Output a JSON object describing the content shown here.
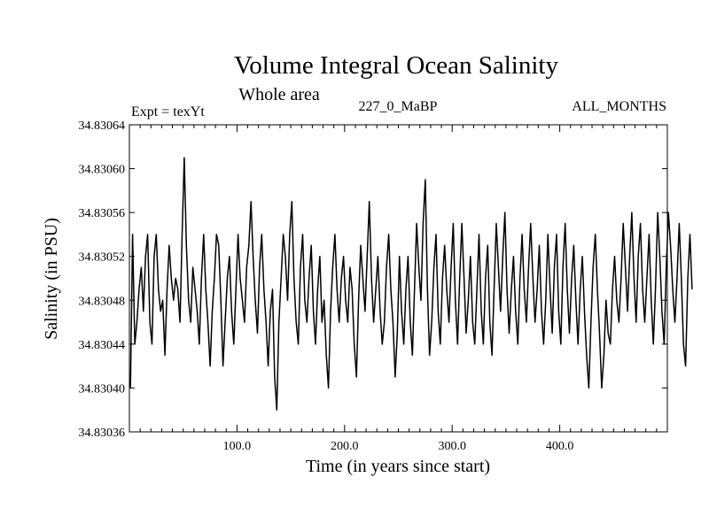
{
  "chart_data": {
    "type": "line",
    "title": "Volume Integral Ocean Salinity",
    "subtitle": "Whole area",
    "annotations": {
      "left": "Expt = texYt",
      "center": "227_0_MaBP",
      "right": "ALL_MONTHS"
    },
    "xlabel": "Time (in years since start)",
    "ylabel": "Salinity (in PSU)",
    "xlim": [
      0,
      500
    ],
    "ylim": [
      34.83036,
      34.83064
    ],
    "x_ticks": [
      100,
      200,
      300,
      400
    ],
    "x_tick_labels": [
      "100.0",
      "200.0",
      "300.0",
      "400.0"
    ],
    "y_ticks": [
      34.83036,
      34.8304,
      34.83044,
      34.83048,
      34.83052,
      34.83056,
      34.8306,
      34.83064
    ],
    "y_tick_labels": [
      "34.83036",
      "34.83040",
      "34.83044",
      "34.83048",
      "34.83052",
      "34.83056",
      "34.83060",
      "34.83064"
    ],
    "grid": false,
    "line_color": "#000000",
    "series": [
      {
        "x_start": 1,
        "x_step": 2,
        "values": [
          34.8304,
          34.83054,
          34.83044,
          34.83046,
          34.83049,
          34.83051,
          34.83047,
          34.83052,
          34.83054,
          34.83046,
          34.83044,
          34.83052,
          34.83054,
          34.83049,
          34.83047,
          34.83048,
          34.83043,
          34.83049,
          34.83053,
          34.8305,
          34.83048,
          34.8305,
          34.83049,
          34.83046,
          34.83054,
          34.83061,
          34.83053,
          34.83048,
          34.83046,
          34.83051,
          34.83049,
          34.83047,
          34.83044,
          34.8305,
          34.83054,
          34.83049,
          34.83046,
          34.83042,
          34.83047,
          34.8305,
          34.83054,
          34.83053,
          34.83048,
          34.83042,
          34.83046,
          34.8305,
          34.83052,
          34.83047,
          34.83044,
          34.83049,
          34.83054,
          34.8305,
          34.83048,
          34.83046,
          34.83051,
          34.83053,
          34.83057,
          34.83052,
          34.83048,
          34.83045,
          34.83051,
          34.83054,
          34.83049,
          34.83046,
          34.83042,
          34.83047,
          34.83049,
          34.83041,
          34.83038,
          34.83046,
          34.8305,
          34.83054,
          34.83052,
          34.83048,
          34.83054,
          34.83057,
          34.8305,
          34.83046,
          34.83044,
          34.83051,
          34.83054,
          34.83048,
          34.83046,
          34.8305,
          34.83053,
          34.83047,
          34.83044,
          34.83049,
          34.83052,
          34.83046,
          34.83048,
          34.83043,
          34.8304,
          34.83047,
          34.83051,
          34.83054,
          34.83049,
          34.83046,
          34.8305,
          34.83052,
          34.83048,
          34.83046,
          34.83051,
          34.83049,
          34.83044,
          34.83041,
          34.83048,
          34.83053,
          34.8305,
          34.83047,
          34.83052,
          34.83057,
          34.8305,
          34.83046,
          34.83049,
          34.83052,
          34.83047,
          34.83044,
          34.83046,
          34.83051,
          34.83054,
          34.83049,
          34.83046,
          34.83041,
          34.83045,
          34.83052,
          34.83047,
          34.83044,
          34.83049,
          34.83052,
          34.83046,
          34.83043,
          34.83049,
          34.83055,
          34.83051,
          34.83048,
          34.83055,
          34.83059,
          34.83049,
          34.83043,
          34.83046,
          34.83051,
          34.83054,
          34.83047,
          34.83044,
          34.8305,
          34.83053,
          34.83049,
          34.83046,
          34.83051,
          34.83055,
          34.83048,
          34.83044,
          34.8305,
          34.83055,
          34.8305,
          34.83045,
          34.83048,
          34.83052,
          34.83046,
          34.83044,
          34.83049,
          34.83054,
          34.83047,
          34.83044,
          34.8305,
          34.83053,
          34.83046,
          34.83043,
          34.83049,
          34.83055,
          34.83051,
          34.83047,
          34.83052,
          34.83056,
          34.83049,
          34.83045,
          34.83049,
          34.83052,
          34.83047,
          34.83044,
          34.8305,
          34.83054,
          34.83049,
          34.83046,
          34.83051,
          34.83055,
          34.8305,
          34.83046,
          34.83049,
          34.83053,
          34.83047,
          34.83044,
          34.83048,
          34.83054,
          34.83049,
          34.83045,
          34.83051,
          34.83054,
          34.83047,
          34.83044,
          34.83051,
          34.83055,
          34.83049,
          34.83045,
          34.8305,
          34.83053,
          34.83048,
          34.83044,
          34.83049,
          34.83052,
          34.83047,
          34.83043,
          34.8304,
          34.83046,
          34.83051,
          34.83054,
          34.83049,
          34.83045,
          34.8304,
          34.83043,
          34.83048,
          34.83045,
          34.83044,
          34.83049,
          34.83052,
          34.83048,
          34.83046,
          34.8305,
          34.83055,
          34.83051,
          34.83047,
          34.83052,
          34.83056,
          34.8305,
          34.83046,
          34.83052,
          34.83055,
          34.83049,
          34.83046,
          34.8305,
          34.83054,
          34.83048,
          34.83044,
          34.83049,
          34.83056,
          34.83052,
          34.83047,
          34.83044,
          34.83051,
          34.83056,
          34.83053,
          34.83049,
          34.83046,
          34.8305,
          34.83055,
          34.8305,
          34.83044,
          34.83042,
          34.8305,
          34.83054,
          34.83049
        ]
      }
    ]
  }
}
